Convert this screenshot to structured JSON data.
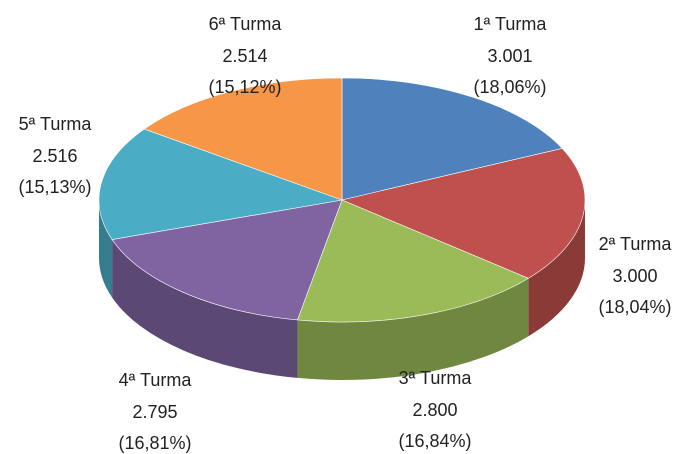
{
  "chart_data": {
    "type": "pie3d",
    "categories": [
      "1ª Turma",
      "2ª Turma",
      "3ª Turma",
      "4ª Turma",
      "5ª Turma",
      "6ª Turma"
    ],
    "values": [
      3001,
      3000,
      2800,
      2795,
      2516,
      2514
    ],
    "value_labels": [
      "3.001",
      "3.000",
      "2.800",
      "2.795",
      "2.516",
      "2.514"
    ],
    "percents": [
      18.06,
      18.04,
      16.84,
      16.81,
      15.13,
      15.12
    ],
    "percent_labels": [
      "(18,06%)",
      "(18,04%)",
      "(16,84%)",
      "(16,81%)",
      "(15,13%)",
      "(15,12%)"
    ],
    "colors": [
      "#4f81bd",
      "#c0504d",
      "#9bbb59",
      "#8064a2",
      "#4bacc6",
      "#f79646"
    ]
  }
}
